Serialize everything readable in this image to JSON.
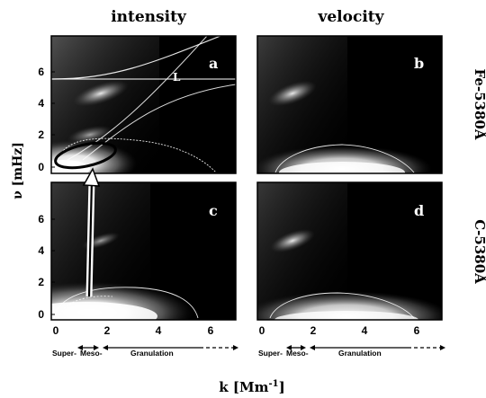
{
  "column_titles": [
    "intensity",
    "velocity"
  ],
  "row_labels": [
    "Fe-5380Å",
    "C-5380Å"
  ],
  "panel_letters": [
    "a",
    "b",
    "c",
    "d"
  ],
  "curve_label": "L",
  "y_axis_label": "ν [mHz]",
  "x_axis_label": "k [Mm",
  "x_axis_label_exp": "-1",
  "x_axis_label_end": "]",
  "y_ticks": [
    "0",
    "2",
    "4",
    "6"
  ],
  "x_ticks": [
    "0",
    "2",
    "4",
    "6"
  ],
  "regimes": [
    "Super-",
    "Meso-",
    "Granulation"
  ],
  "colors": {
    "background": "#000000",
    "frame": "#000000",
    "page": "#ffffff"
  }
}
